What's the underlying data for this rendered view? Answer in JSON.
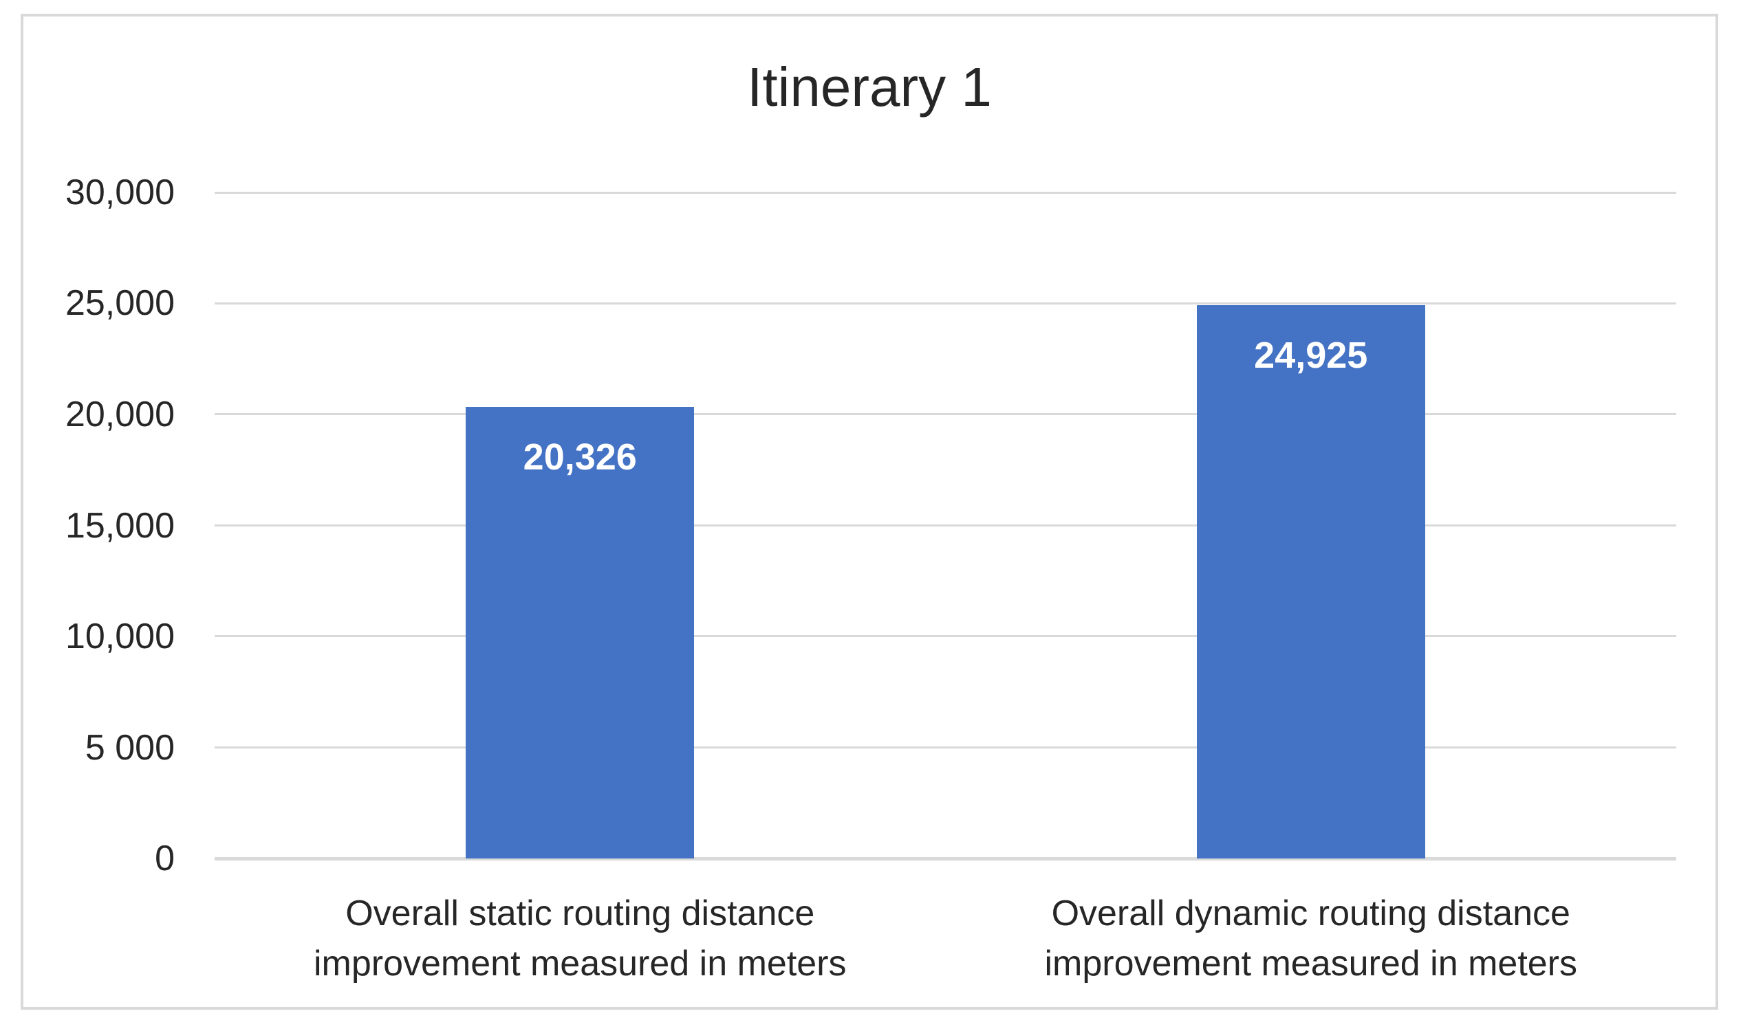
{
  "chart_data": {
    "type": "bar",
    "title": "Itinerary 1",
    "categories": [
      "Overall static routing distance\nimprovement measured in meters",
      "Overall dynamic routing distance\nimprovement measured in meters"
    ],
    "values": [
      20326,
      24925
    ],
    "value_labels": [
      "20,326",
      "24,925"
    ],
    "xlabel": "",
    "ylabel": "",
    "ylim": [
      0,
      30000
    ],
    "yticks": [
      {
        "value": 30000,
        "label": "30,000"
      },
      {
        "value": 25000,
        "label": "25,000"
      },
      {
        "value": 20000,
        "label": "20,000"
      },
      {
        "value": 15000,
        "label": "15,000"
      },
      {
        "value": 10000,
        "label": "10,000"
      },
      {
        "value": 5000,
        "label": "5 000"
      },
      {
        "value": 0,
        "label": "0"
      }
    ],
    "grid": true,
    "legend_position": "none",
    "data_label_position": "inside-end",
    "colors": {
      "bar": "#4472C4",
      "bar_label": "#FFFFFF",
      "gridline": "#D9D9D9",
      "chart_border": "#D9D9D9",
      "text": "#262626",
      "background": "#FFFFFF"
    }
  }
}
